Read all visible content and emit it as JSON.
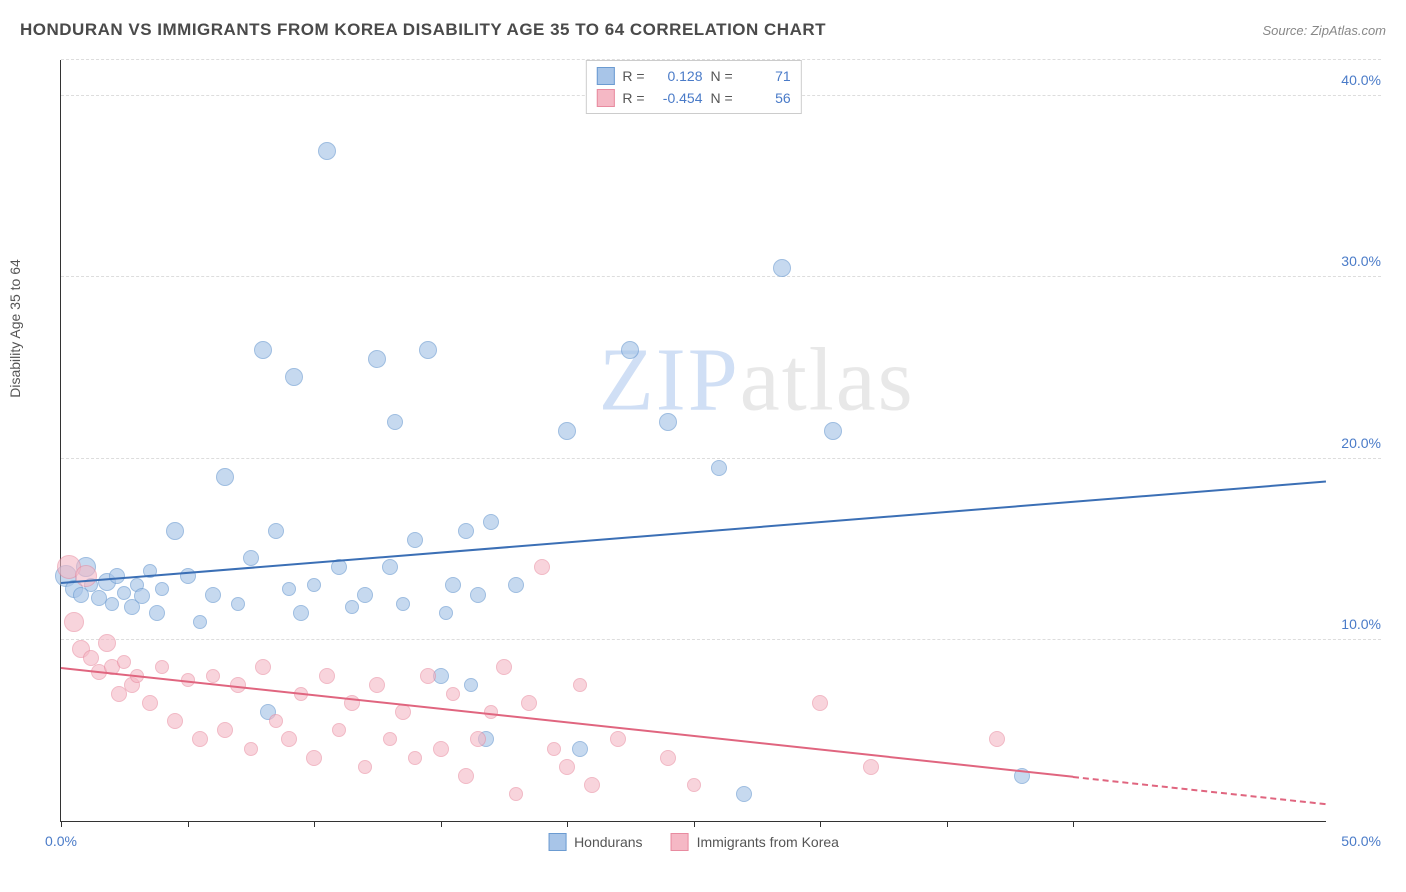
{
  "header": {
    "title": "HONDURAN VS IMMIGRANTS FROM KOREA DISABILITY AGE 35 TO 64 CORRELATION CHART",
    "source": "Source: ZipAtlas.com"
  },
  "chart": {
    "type": "scatter",
    "y_axis_label": "Disability Age 35 to 64",
    "xlim": [
      0,
      50
    ],
    "ylim": [
      0,
      42
    ],
    "x_tick_positions": [
      0,
      5,
      10,
      15,
      20,
      25,
      30,
      35,
      40
    ],
    "x_tick_labels": {
      "min": "0.0%",
      "max": "50.0%"
    },
    "y_ticks": [
      {
        "value": 10,
        "label": "10.0%"
      },
      {
        "value": 20,
        "label": "20.0%"
      },
      {
        "value": 30,
        "label": "30.0%"
      },
      {
        "value": 40,
        "label": "40.0%"
      }
    ],
    "grid_color": "#dddddd",
    "background_color": "#ffffff",
    "axis_color": "#333333",
    "tick_label_color": "#4a7bc8",
    "watermark": {
      "zip": "ZIP",
      "atlas": "atlas"
    },
    "series": [
      {
        "name": "Hondurans",
        "marker_fill": "#a8c5e8",
        "marker_stroke": "#6b9bd1",
        "marker_opacity": 0.65,
        "line_color": "#3b6fb5",
        "r_value": "0.128",
        "n_value": "71",
        "trend": {
          "x1": 0,
          "y1": 13.2,
          "x2": 50,
          "y2": 18.8,
          "dash_from_x": 50
        },
        "points": [
          {
            "x": 0.2,
            "y": 13.5,
            "r": 11
          },
          {
            "x": 0.5,
            "y": 12.8,
            "r": 9
          },
          {
            "x": 0.8,
            "y": 12.5,
            "r": 8
          },
          {
            "x": 1.0,
            "y": 14.0,
            "r": 10
          },
          {
            "x": 1.2,
            "y": 13.0,
            "r": 7
          },
          {
            "x": 1.5,
            "y": 12.3,
            "r": 8
          },
          {
            "x": 1.8,
            "y": 13.2,
            "r": 9
          },
          {
            "x": 2.0,
            "y": 12.0,
            "r": 7
          },
          {
            "x": 2.2,
            "y": 13.5,
            "r": 8
          },
          {
            "x": 2.5,
            "y": 12.6,
            "r": 7
          },
          {
            "x": 2.8,
            "y": 11.8,
            "r": 8
          },
          {
            "x": 3.0,
            "y": 13.0,
            "r": 7
          },
          {
            "x": 3.2,
            "y": 12.4,
            "r": 8
          },
          {
            "x": 3.5,
            "y": 13.8,
            "r": 7
          },
          {
            "x": 3.8,
            "y": 11.5,
            "r": 8
          },
          {
            "x": 4.0,
            "y": 12.8,
            "r": 7
          },
          {
            "x": 4.5,
            "y": 16.0,
            "r": 9
          },
          {
            "x": 5.0,
            "y": 13.5,
            "r": 8
          },
          {
            "x": 5.5,
            "y": 11.0,
            "r": 7
          },
          {
            "x": 6.0,
            "y": 12.5,
            "r": 8
          },
          {
            "x": 6.5,
            "y": 19.0,
            "r": 9
          },
          {
            "x": 7.0,
            "y": 12.0,
            "r": 7
          },
          {
            "x": 7.5,
            "y": 14.5,
            "r": 8
          },
          {
            "x": 8.0,
            "y": 26.0,
            "r": 9
          },
          {
            "x": 8.2,
            "y": 6.0,
            "r": 8
          },
          {
            "x": 8.5,
            "y": 16.0,
            "r": 8
          },
          {
            "x": 9.0,
            "y": 12.8,
            "r": 7
          },
          {
            "x": 9.2,
            "y": 24.5,
            "r": 9
          },
          {
            "x": 9.5,
            "y": 11.5,
            "r": 8
          },
          {
            "x": 10.0,
            "y": 13.0,
            "r": 7
          },
          {
            "x": 10.5,
            "y": 37.0,
            "r": 9
          },
          {
            "x": 11.0,
            "y": 14.0,
            "r": 8
          },
          {
            "x": 11.5,
            "y": 11.8,
            "r": 7
          },
          {
            "x": 12.0,
            "y": 12.5,
            "r": 8
          },
          {
            "x": 12.5,
            "y": 25.5,
            "r": 9
          },
          {
            "x": 13.0,
            "y": 14.0,
            "r": 8
          },
          {
            "x": 13.2,
            "y": 22.0,
            "r": 8
          },
          {
            "x": 13.5,
            "y": 12.0,
            "r": 7
          },
          {
            "x": 14.0,
            "y": 15.5,
            "r": 8
          },
          {
            "x": 14.5,
            "y": 26.0,
            "r": 9
          },
          {
            "x": 15.0,
            "y": 8.0,
            "r": 8
          },
          {
            "x": 15.2,
            "y": 11.5,
            "r": 7
          },
          {
            "x": 15.5,
            "y": 13.0,
            "r": 8
          },
          {
            "x": 16.0,
            "y": 16.0,
            "r": 8
          },
          {
            "x": 16.2,
            "y": 7.5,
            "r": 7
          },
          {
            "x": 16.5,
            "y": 12.5,
            "r": 8
          },
          {
            "x": 16.8,
            "y": 4.5,
            "r": 8
          },
          {
            "x": 17.0,
            "y": 16.5,
            "r": 8
          },
          {
            "x": 18.0,
            "y": 13.0,
            "r": 8
          },
          {
            "x": 20.0,
            "y": 21.5,
            "r": 9
          },
          {
            "x": 20.5,
            "y": 4.0,
            "r": 8
          },
          {
            "x": 22.5,
            "y": 26.0,
            "r": 9
          },
          {
            "x": 24.0,
            "y": 22.0,
            "r": 9
          },
          {
            "x": 26.0,
            "y": 19.5,
            "r": 8
          },
          {
            "x": 27.0,
            "y": 1.5,
            "r": 8
          },
          {
            "x": 28.5,
            "y": 30.5,
            "r": 9
          },
          {
            "x": 30.5,
            "y": 21.5,
            "r": 9
          },
          {
            "x": 38.0,
            "y": 2.5,
            "r": 8
          }
        ]
      },
      {
        "name": "Immigrants from Korea",
        "marker_fill": "#f5b8c5",
        "marker_stroke": "#e88ba0",
        "marker_opacity": 0.6,
        "line_color": "#e0657f",
        "r_value": "-0.454",
        "n_value": "56",
        "trend": {
          "x1": 0,
          "y1": 8.5,
          "x2": 40,
          "y2": 2.5,
          "dash_from_x": 40,
          "dash_to_x": 50,
          "dash_to_y": 1.0
        },
        "points": [
          {
            "x": 0.3,
            "y": 14.0,
            "r": 12
          },
          {
            "x": 0.5,
            "y": 11.0,
            "r": 10
          },
          {
            "x": 0.8,
            "y": 9.5,
            "r": 9
          },
          {
            "x": 1.0,
            "y": 13.5,
            "r": 11
          },
          {
            "x": 1.2,
            "y": 9.0,
            "r": 8
          },
          {
            "x": 1.5,
            "y": 8.2,
            "r": 8
          },
          {
            "x": 1.8,
            "y": 9.8,
            "r": 9
          },
          {
            "x": 2.0,
            "y": 8.5,
            "r": 8
          },
          {
            "x": 2.3,
            "y": 7.0,
            "r": 8
          },
          {
            "x": 2.5,
            "y": 8.8,
            "r": 7
          },
          {
            "x": 2.8,
            "y": 7.5,
            "r": 8
          },
          {
            "x": 3.0,
            "y": 8.0,
            "r": 7
          },
          {
            "x": 3.5,
            "y": 6.5,
            "r": 8
          },
          {
            "x": 4.0,
            "y": 8.5,
            "r": 7
          },
          {
            "x": 4.5,
            "y": 5.5,
            "r": 8
          },
          {
            "x": 5.0,
            "y": 7.8,
            "r": 7
          },
          {
            "x": 5.5,
            "y": 4.5,
            "r": 8
          },
          {
            "x": 6.0,
            "y": 8.0,
            "r": 7
          },
          {
            "x": 6.5,
            "y": 5.0,
            "r": 8
          },
          {
            "x": 7.0,
            "y": 7.5,
            "r": 8
          },
          {
            "x": 7.5,
            "y": 4.0,
            "r": 7
          },
          {
            "x": 8.0,
            "y": 8.5,
            "r": 8
          },
          {
            "x": 8.5,
            "y": 5.5,
            "r": 7
          },
          {
            "x": 9.0,
            "y": 4.5,
            "r": 8
          },
          {
            "x": 9.5,
            "y": 7.0,
            "r": 7
          },
          {
            "x": 10.0,
            "y": 3.5,
            "r": 8
          },
          {
            "x": 10.5,
            "y": 8.0,
            "r": 8
          },
          {
            "x": 11.0,
            "y": 5.0,
            "r": 7
          },
          {
            "x": 11.5,
            "y": 6.5,
            "r": 8
          },
          {
            "x": 12.0,
            "y": 3.0,
            "r": 7
          },
          {
            "x": 12.5,
            "y": 7.5,
            "r": 8
          },
          {
            "x": 13.0,
            "y": 4.5,
            "r": 7
          },
          {
            "x": 13.5,
            "y": 6.0,
            "r": 8
          },
          {
            "x": 14.0,
            "y": 3.5,
            "r": 7
          },
          {
            "x": 14.5,
            "y": 8.0,
            "r": 8
          },
          {
            "x": 15.0,
            "y": 4.0,
            "r": 8
          },
          {
            "x": 15.5,
            "y": 7.0,
            "r": 7
          },
          {
            "x": 16.0,
            "y": 2.5,
            "r": 8
          },
          {
            "x": 16.5,
            "y": 4.5,
            "r": 8
          },
          {
            "x": 17.0,
            "y": 6.0,
            "r": 7
          },
          {
            "x": 17.5,
            "y": 8.5,
            "r": 8
          },
          {
            "x": 18.0,
            "y": 1.5,
            "r": 7
          },
          {
            "x": 18.5,
            "y": 6.5,
            "r": 8
          },
          {
            "x": 19.0,
            "y": 14.0,
            "r": 8
          },
          {
            "x": 19.5,
            "y": 4.0,
            "r": 7
          },
          {
            "x": 20.0,
            "y": 3.0,
            "r": 8
          },
          {
            "x": 20.5,
            "y": 7.5,
            "r": 7
          },
          {
            "x": 21.0,
            "y": 2.0,
            "r": 8
          },
          {
            "x": 22.0,
            "y": 4.5,
            "r": 8
          },
          {
            "x": 24.0,
            "y": 3.5,
            "r": 8
          },
          {
            "x": 25.0,
            "y": 2.0,
            "r": 7
          },
          {
            "x": 30.0,
            "y": 6.5,
            "r": 8
          },
          {
            "x": 32.0,
            "y": 3.0,
            "r": 8
          },
          {
            "x": 37.0,
            "y": 4.5,
            "r": 8
          }
        ]
      }
    ],
    "legend_bottom": [
      {
        "swatch_fill": "#a8c5e8",
        "swatch_stroke": "#6b9bd1",
        "label": "Hondurans"
      },
      {
        "swatch_fill": "#f5b8c5",
        "swatch_stroke": "#e88ba0",
        "label": "Immigrants from Korea"
      }
    ]
  }
}
